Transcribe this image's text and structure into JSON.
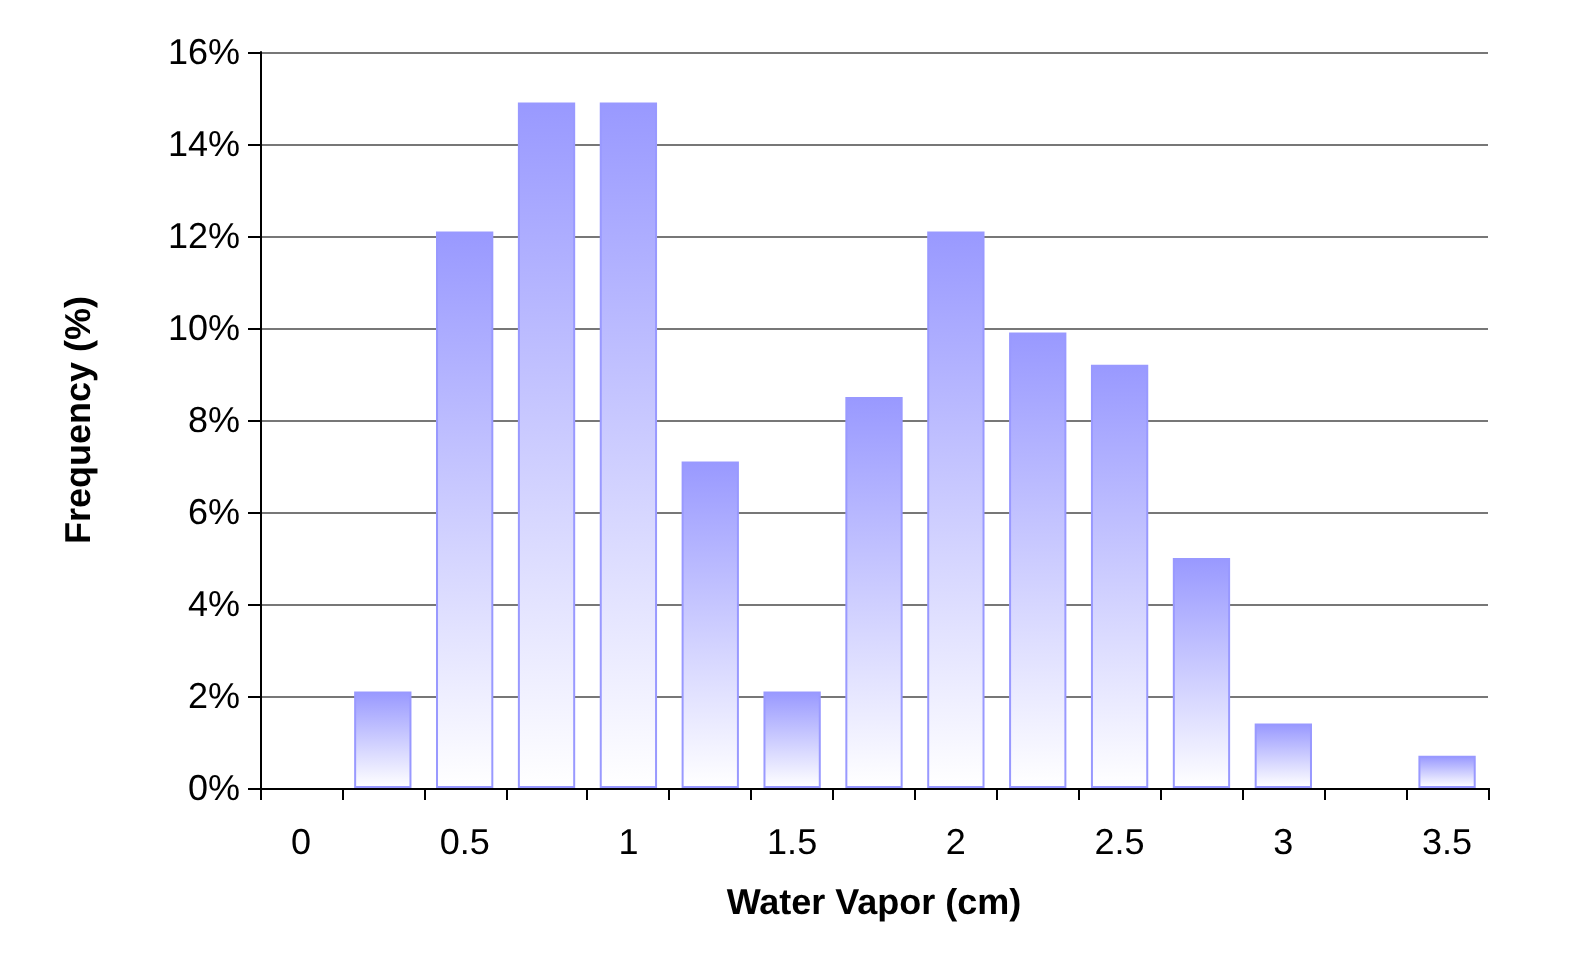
{
  "chart_data": {
    "type": "bar",
    "xlabel": "Water Vapor (cm)",
    "ylabel": "Frequency (%)",
    "categories": [
      "0",
      null,
      "0.5",
      null,
      "1",
      null,
      "1.5",
      null,
      "2",
      null,
      "2.5",
      null,
      "3",
      null,
      "3.5"
    ],
    "values": [
      null,
      2.1,
      12.1,
      14.9,
      14.9,
      7.1,
      2.1,
      8.5,
      12.1,
      9.9,
      9.2,
      5.0,
      1.4,
      null,
      0.7
    ],
    "color": "#9999ff",
    "ylim": [
      0,
      16
    ],
    "yticks": [
      {
        "value": 0,
        "label": "0%"
      },
      {
        "value": 2,
        "label": "2%"
      },
      {
        "value": 4,
        "label": "4%"
      },
      {
        "value": 6,
        "label": "6%"
      },
      {
        "value": 8,
        "label": "8%"
      },
      {
        "value": 10,
        "label": "10%"
      },
      {
        "value": 12,
        "label": "12%"
      },
      {
        "value": 14,
        "label": "14%"
      },
      {
        "value": 16,
        "label": "16%"
      }
    ],
    "grid": "y"
  }
}
